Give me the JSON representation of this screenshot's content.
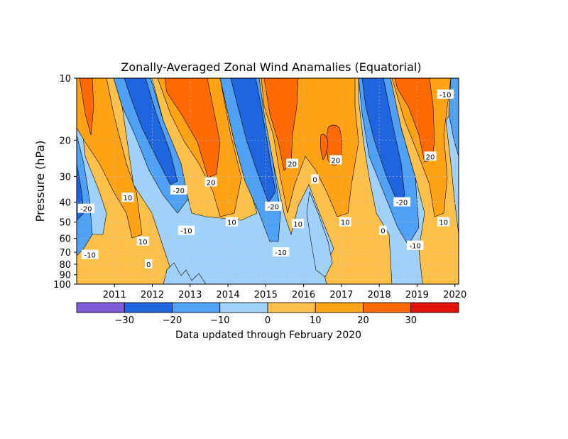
{
  "chart_data": {
    "type": "heatmap",
    "title": "Zonally-Averaged Zonal Wind Anamalies (Equatorial)",
    "ylabel": "Pressure (hPa)",
    "xlabel": "",
    "x_ticks": [
      "2011",
      "2012",
      "2013",
      "2014",
      "2015",
      "2016",
      "2017",
      "2018",
      "2019",
      "2020"
    ],
    "y_ticks": [
      "10",
      "20",
      "30",
      "40",
      "50",
      "60",
      "70",
      "80",
      "90",
      "100"
    ],
    "y_scale": "log",
    "ylim": [
      100,
      10
    ],
    "grid": true,
    "colorbar": {
      "ticks": [
        "-30",
        "-20",
        "-10",
        "0",
        "10",
        "20",
        "30"
      ],
      "bins": [
        {
          "range": "< -30",
          "color": "#7d5cd6"
        },
        {
          "range": "-30 to -20",
          "color": "#1f65e0"
        },
        {
          "range": "-20 to -10",
          "color": "#4ea1f5"
        },
        {
          "range": "-10 to 0",
          "color": "#9fd1fa"
        },
        {
          "range": "0 to 10",
          "color": "#ffc04a"
        },
        {
          "range": "10 to 20",
          "color": "#ffa214"
        },
        {
          "range": "20 to 30",
          "color": "#ff6a00"
        },
        {
          "range": "> 30",
          "color": "#e0120a"
        }
      ]
    },
    "contour_labels": [
      {
        "text": "-20",
        "year": 2010.25,
        "p": 43
      },
      {
        "text": "-10",
        "year": 2010.35,
        "p": 72
      },
      {
        "text": "10",
        "year": 2011.35,
        "p": 38
      },
      {
        "text": "10",
        "year": 2011.75,
        "p": 62
      },
      {
        "text": "0",
        "year": 2011.9,
        "p": 80
      },
      {
        "text": "-20",
        "year": 2012.7,
        "p": 35
      },
      {
        "text": "-10",
        "year": 2012.9,
        "p": 55
      },
      {
        "text": "20",
        "year": 2013.55,
        "p": 32
      },
      {
        "text": "10",
        "year": 2014.1,
        "p": 50
      },
      {
        "text": "-20",
        "year": 2015.2,
        "p": 42
      },
      {
        "text": "-10",
        "year": 2015.4,
        "p": 70
      },
      {
        "text": "20",
        "year": 2015.7,
        "p": 26
      },
      {
        "text": "10",
        "year": 2015.85,
        "p": 51
      },
      {
        "text": "0",
        "year": 2016.3,
        "p": 31
      },
      {
        "text": "20",
        "year": 2016.85,
        "p": 25
      },
      {
        "text": "10",
        "year": 2017.1,
        "p": 50
      },
      {
        "text": "0",
        "year": 2018.1,
        "p": 55
      },
      {
        "text": "-20",
        "year": 2018.6,
        "p": 40
      },
      {
        "text": "-10",
        "year": 2018.95,
        "p": 65
      },
      {
        "text": "20",
        "year": 2019.35,
        "p": 24
      },
      {
        "text": "10",
        "year": 2019.7,
        "p": 50
      },
      {
        "text": "-10",
        "year": 2019.75,
        "p": 12
      }
    ]
  },
  "footer": {
    "note": "Data updated through February 2020"
  },
  "palette": {
    "grid": "#b8b8b8",
    "contour": "#000000",
    "label_bg": "#ffffff"
  }
}
